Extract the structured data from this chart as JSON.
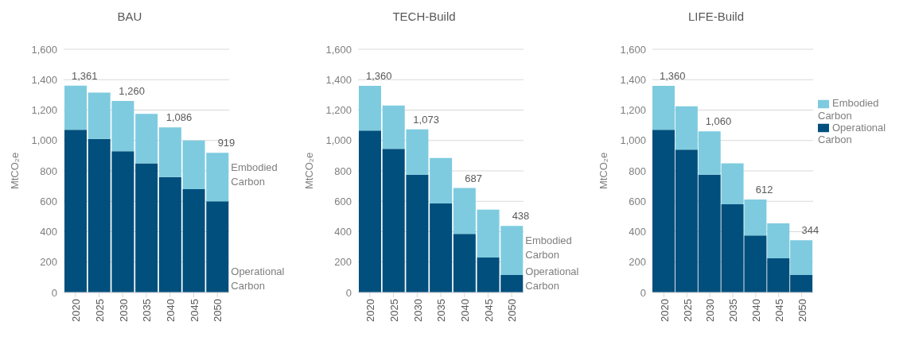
{
  "chart_data": [
    {
      "type": "bar",
      "title": "BAU",
      "ylabel": "MtCO₂e",
      "categories": [
        "2020",
        "2025",
        "2030",
        "2035",
        "2040",
        "2045",
        "2050"
      ],
      "stacked": true,
      "ylim": [
        0,
        1600
      ],
      "yticks": [
        0,
        200,
        400,
        600,
        800,
        {
          "value": 1000,
          "label": "1,000"
        },
        {
          "value": 1200,
          "label": "1,200"
        },
        {
          "value": 1400,
          "label": "1,400"
        },
        {
          "value": 1600,
          "label": "1,600"
        }
      ],
      "grid": "y",
      "legend": false,
      "series": [
        {
          "name": "Operational Carbon",
          "color": "#004f7c",
          "values": [
            1070,
            1010,
            930,
            850,
            760,
            680,
            600
          ]
        },
        {
          "name": "Embodied Carbon",
          "color": "#7ecbe0",
          "values": [
            291,
            305,
            330,
            325,
            326,
            320,
            319
          ]
        }
      ],
      "totals": [
        "1,361",
        null,
        "1,260",
        null,
        "1,086",
        null,
        "919"
      ]
    },
    {
      "type": "bar",
      "title": "TECH-Build",
      "ylabel": "MtCO₂e",
      "categories": [
        "2020",
        "2025",
        "2030",
        "2035",
        "2040",
        "2045",
        "2050"
      ],
      "stacked": true,
      "ylim": [
        0,
        1600
      ],
      "yticks": [
        0,
        200,
        400,
        600,
        800,
        {
          "value": 1000,
          "label": "1,000"
        },
        {
          "value": 1200,
          "label": "1,200"
        },
        {
          "value": 1400,
          "label": "1,400"
        },
        {
          "value": 1600,
          "label": "1,600"
        }
      ],
      "grid": "y",
      "legend": false,
      "series": [
        {
          "name": "Operational Carbon",
          "color": "#004f7c",
          "values": [
            1065,
            945,
            775,
            585,
            385,
            230,
            115
          ]
        },
        {
          "name": "Embodied Carbon",
          "color": "#7ecbe0",
          "values": [
            295,
            285,
            298,
            300,
            302,
            315,
            323
          ]
        }
      ],
      "totals": [
        "1,360",
        null,
        "1,073",
        null,
        "687",
        null,
        "438"
      ]
    },
    {
      "type": "bar",
      "title": "LIFE-Build",
      "ylabel": "MtCO₂e",
      "categories": [
        "2020",
        "2025",
        "2030",
        "2035",
        "2040",
        "2045",
        "2050"
      ],
      "stacked": true,
      "ylim": [
        0,
        1600
      ],
      "yticks": [
        0,
        200,
        400,
        600,
        800,
        {
          "value": 1000,
          "label": "1,000"
        },
        {
          "value": 1200,
          "label": "1,200"
        },
        {
          "value": 1400,
          "label": "1,400"
        },
        {
          "value": 1600,
          "label": "1,600"
        }
      ],
      "grid": "y",
      "legend": "right",
      "series": [
        {
          "name": "Operational Carbon",
          "color": "#004f7c",
          "values": [
            1070,
            940,
            775,
            580,
            375,
            225,
            115
          ]
        },
        {
          "name": "Embodied Carbon",
          "color": "#7ecbe0",
          "values": [
            290,
            285,
            285,
            270,
            237,
            230,
            229
          ]
        }
      ],
      "totals": [
        "1,360",
        null,
        "1,060",
        null,
        "612",
        null,
        "344"
      ]
    }
  ]
}
